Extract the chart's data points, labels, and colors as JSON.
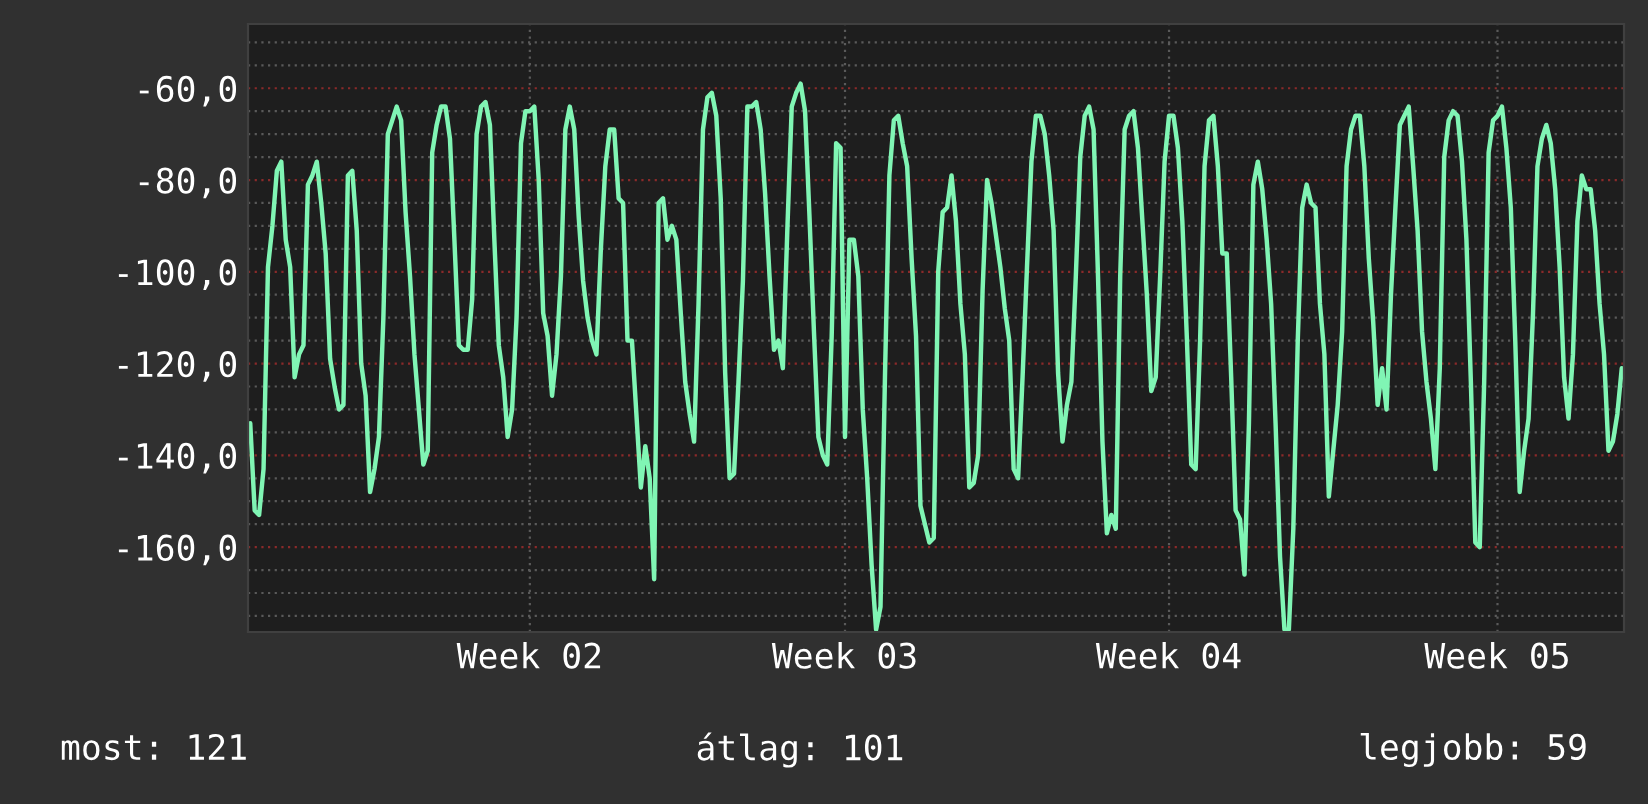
{
  "chart_data": {
    "type": "line",
    "categories": [
      null,
      null,
      null,
      null,
      null,
      null,
      null,
      null,
      null,
      null,
      null,
      null,
      null,
      null,
      null,
      null,
      null,
      null,
      null,
      null,
      null,
      null,
      null,
      null,
      null,
      null,
      null,
      null,
      null,
      null,
      null,
      null,
      null,
      null,
      null,
      null,
      null,
      null,
      null,
      null,
      null,
      null,
      null,
      null,
      null,
      null,
      null,
      null,
      null,
      null,
      null,
      null,
      null,
      null,
      null,
      null,
      null,
      null,
      null,
      null,
      null,
      null,
      null,
      "Week 02",
      null,
      null,
      null,
      null,
      null,
      null,
      null,
      null,
      null,
      null,
      null,
      null,
      null,
      null,
      null,
      null,
      null,
      null,
      null,
      null,
      null,
      null,
      null,
      null,
      null,
      null,
      null,
      null,
      null,
      null,
      null,
      null,
      null,
      null,
      null,
      null,
      null,
      null,
      null,
      null,
      null,
      null,
      null,
      null,
      null,
      null,
      null,
      null,
      null,
      null,
      null,
      null,
      null,
      null,
      null,
      null,
      null,
      null,
      null,
      null,
      null,
      null,
      null,
      null,
      null,
      null,
      null,
      null,
      null,
      null,
      "Week 03",
      null,
      null,
      null,
      null,
      null,
      null,
      null,
      null,
      null,
      null,
      null,
      null,
      null,
      null,
      null,
      null,
      null,
      null,
      null,
      null,
      null,
      null,
      null,
      null,
      null,
      null,
      null,
      null,
      null,
      null,
      null,
      null,
      null,
      null,
      null,
      null,
      null,
      null,
      null,
      null,
      null,
      null,
      null,
      null,
      null,
      null,
      null,
      null,
      null,
      null,
      null,
      null,
      null,
      null,
      null,
      null,
      null,
      null,
      null,
      null,
      null,
      null,
      null,
      null,
      null,
      null,
      null,
      null,
      null,
      null,
      null,
      null,
      "Week 04",
      null,
      null,
      null,
      null,
      null,
      null,
      null,
      null,
      null,
      null,
      null,
      null,
      null,
      null,
      null,
      null,
      null,
      null,
      null,
      null,
      null,
      null,
      null,
      null,
      null,
      null,
      null,
      null,
      null,
      null,
      null,
      null,
      null,
      null,
      null,
      null,
      null,
      null,
      null,
      null,
      null,
      null,
      null,
      null,
      null,
      null,
      null,
      null,
      null,
      null,
      null,
      null,
      null,
      null,
      null,
      null,
      null,
      null,
      null,
      null,
      null,
      null,
      null,
      null,
      null,
      null,
      null,
      null,
      null,
      null,
      null,
      null,
      null,
      "Week 05",
      null,
      null,
      null,
      null,
      null,
      null,
      null,
      null,
      null,
      null,
      null,
      null,
      null,
      null,
      null,
      null,
      null,
      null,
      null,
      null,
      null,
      null,
      null,
      null,
      null,
      null,
      null,
      null
    ],
    "series": [
      {
        "color": "#80f5b4",
        "values": [
          -133,
          -152,
          -153,
          -143,
          -99,
          -90,
          -78,
          -76,
          -93,
          -99,
          -123,
          -118,
          -116,
          -81,
          -79,
          -76,
          -85,
          -96,
          -119,
          -125,
          -130,
          -129,
          -79,
          -78,
          -91,
          -120,
          -127,
          -148,
          -143,
          -136,
          -110,
          -70,
          -67,
          -64,
          -67,
          -87,
          -101,
          -118,
          -130,
          -142,
          -139,
          -74,
          -68,
          -64,
          -64,
          -71,
          -93,
          -116,
          -117,
          -117,
          -106,
          -70,
          -64,
          -63,
          -68,
          -93,
          -116,
          -123,
          -136,
          -130,
          -110,
          -72,
          -65,
          -65,
          -64,
          -80,
          -109,
          -114,
          -127,
          -118,
          -101,
          -69,
          -64,
          -69,
          -88,
          -102,
          -110,
          -115,
          -118,
          -95,
          -77,
          -69,
          -69,
          -84,
          -85,
          -115,
          -115,
          -131,
          -147,
          -138,
          -145,
          -167,
          -85,
          -84,
          -93,
          -90,
          -93,
          -109,
          -124,
          -131,
          -137,
          -107,
          -69,
          -62,
          -61,
          -66,
          -84,
          -122,
          -145,
          -144,
          -124,
          -102,
          -64,
          -64,
          -63,
          -69,
          -83,
          -101,
          -117,
          -115,
          -121,
          -91,
          -64,
          -61,
          -59,
          -65,
          -88,
          -113,
          -136,
          -140,
          -142,
          -114,
          -72,
          -73,
          -136,
          -93,
          -93,
          -101,
          -130,
          -145,
          -164,
          -178,
          -173,
          -123,
          -79,
          -67,
          -66,
          -72,
          -77,
          -97,
          -114,
          -151,
          -155,
          -159,
          -158,
          -100,
          -87,
          -86,
          -79,
          -89,
          -107,
          -118,
          -147,
          -146,
          -140,
          -104,
          -80,
          -85,
          -92,
          -99,
          -108,
          -115,
          -143,
          -145,
          -123,
          -99,
          -76,
          -66,
          -66,
          -70,
          -79,
          -91,
          -122,
          -137,
          -129,
          -124,
          -101,
          -75,
          -66,
          -64,
          -69,
          -101,
          -137,
          -157,
          -153,
          -156,
          -101,
          -69,
          -66,
          -65,
          -73,
          -89,
          -105,
          -126,
          -123,
          -101,
          -76,
          -66,
          -66,
          -73,
          -89,
          -114,
          -142,
          -143,
          -115,
          -77,
          -67,
          -66,
          -77,
          -96,
          -96,
          -123,
          -152,
          -154,
          -166,
          -133,
          -81,
          -76,
          -82,
          -93,
          -107,
          -133,
          -162,
          -178,
          -178,
          -156,
          -115,
          -86,
          -81,
          -85,
          -86,
          -107,
          -118,
          -149,
          -139,
          -129,
          -113,
          -77,
          -69,
          -66,
          -66,
          -77,
          -97,
          -111,
          -129,
          -121,
          -130,
          -105,
          -86,
          -68,
          -66,
          -64,
          -77,
          -91,
          -113,
          -124,
          -132,
          -143,
          -121,
          -75,
          -67,
          -65,
          -66,
          -76,
          -93,
          -124,
          -159,
          -160,
          -124,
          -74,
          -67,
          -66,
          -64,
          -73,
          -86,
          -115,
          -148,
          -139,
          -132,
          -109,
          -77,
          -71,
          -68,
          -72,
          -82,
          -99,
          -123,
          -132,
          -118,
          -89,
          -79,
          -82,
          -82,
          -91,
          -107,
          -118,
          -139,
          -137,
          -131,
          -121
        ]
      }
    ],
    "ylim": [
      -178.5,
      -46
    ],
    "yticks": [
      {
        "value": -160,
        "label": "-160,0"
      },
      {
        "value": -140,
        "label": "-140,0"
      },
      {
        "value": -120,
        "label": "-120,0"
      },
      {
        "value": -100,
        "label": "-100,0"
      },
      {
        "value": -80,
        "label": "-80,0"
      },
      {
        "value": -60,
        "label": "-60,0"
      }
    ],
    "grid": true,
    "legend": false,
    "annotations": [
      "most: 121",
      "átlag: 101",
      "legjobb: 59"
    ]
  }
}
